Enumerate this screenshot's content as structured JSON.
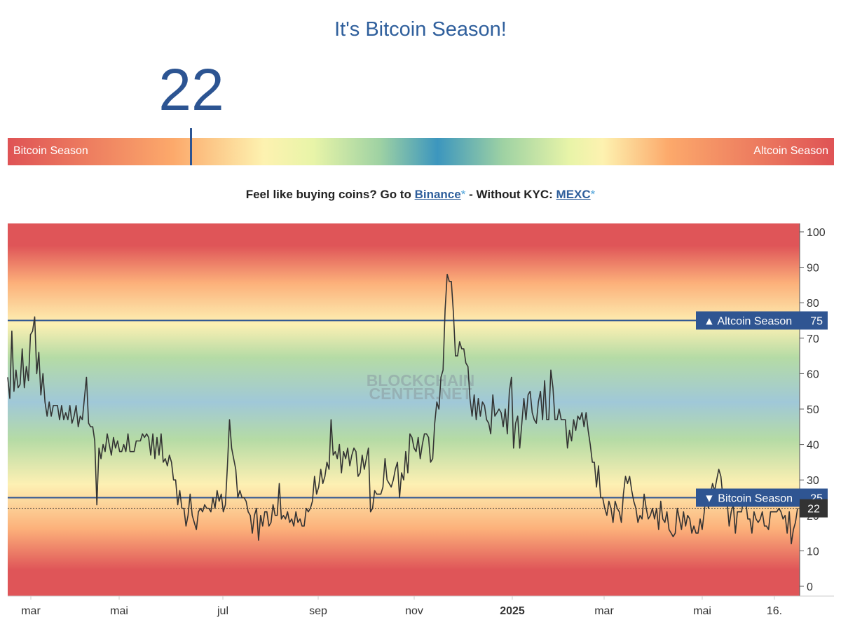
{
  "header": {
    "title": "It's Bitcoin Season!",
    "index_value": "22"
  },
  "gauge": {
    "left_label": "Bitcoin Season",
    "right_label": "Altcoin Season"
  },
  "promo": {
    "prefix": "Feel like buying coins? Go to ",
    "link1": "Binance",
    "star1": "*",
    "middle": " - Without KYC: ",
    "link2": "MEXC",
    "star2": "*"
  },
  "watermark": {
    "line1": "BLOCKCHAIN",
    "line2": "CENTER.NET"
  },
  "chart_data": {
    "type": "line",
    "ylim": [
      0,
      100
    ],
    "y_ticks": [
      "0",
      "10",
      "20",
      "30",
      "40",
      "50",
      "60",
      "70",
      "80",
      "90",
      "100"
    ],
    "x_tick_labels": [
      "mar",
      "mai",
      "jul",
      "sep",
      "nov",
      "2025",
      "mar",
      "mai",
      "16."
    ],
    "threshold_lines": [
      {
        "label": "▲ Altcoin Season",
        "value": 75
      },
      {
        "label": "▼ Bitcoin Season",
        "value": 25
      }
    ],
    "current": {
      "label": "22",
      "value": 22
    },
    "series": [
      {
        "values": [
          59,
          53,
          72,
          55,
          61,
          56,
          57,
          67,
          56,
          62,
          58,
          71,
          72,
          76,
          60,
          66,
          54,
          60,
          52,
          48,
          52,
          48,
          51,
          51,
          51,
          47,
          51,
          47,
          49,
          47,
          51,
          46,
          48,
          51,
          45,
          48,
          47,
          53,
          59,
          46,
          45,
          45,
          41,
          23,
          39,
          36,
          40,
          38,
          43,
          40,
          37,
          42,
          39,
          41,
          38,
          38,
          40,
          38,
          43,
          38,
          38,
          38,
          41,
          41,
          41,
          43,
          42,
          43,
          42,
          37,
          43,
          36,
          42,
          37,
          43,
          35,
          36,
          34,
          37,
          35,
          30,
          30,
          23,
          27,
          22,
          22,
          17,
          20,
          26,
          20,
          18,
          16,
          21,
          22,
          21,
          23,
          22,
          22,
          21,
          25,
          22,
          27,
          24,
          26,
          21,
          23,
          34,
          47,
          39,
          36,
          33,
          25,
          27,
          25,
          25,
          24,
          21,
          20,
          15,
          20,
          22,
          13,
          20,
          17,
          21,
          21,
          17,
          18,
          23,
          20,
          20,
          29,
          19,
          20,
          19,
          21,
          18,
          19,
          17,
          21,
          18,
          19,
          17,
          17,
          22,
          21,
          22,
          24,
          31,
          26,
          28,
          33,
          29,
          31,
          35,
          33,
          47,
          37,
          38,
          36,
          40,
          32,
          38,
          36,
          39,
          34,
          37,
          39,
          38,
          31,
          32,
          37,
          33,
          36,
          39,
          21,
          22,
          27,
          26,
          26,
          26,
          28,
          36,
          30,
          29,
          28,
          30,
          33,
          35,
          25,
          32,
          30,
          38,
          32,
          43,
          42,
          39,
          38,
          42,
          36,
          40,
          43,
          43,
          42,
          35,
          36,
          46,
          52,
          50,
          59,
          61,
          78,
          88,
          86,
          86,
          77,
          65,
          65,
          69,
          67,
          67,
          63,
          62,
          53,
          48,
          54,
          47,
          53,
          48,
          52,
          51,
          47,
          46,
          43,
          54,
          48,
          49,
          50,
          49,
          45,
          50,
          43,
          55,
          59,
          39,
          46,
          48,
          39,
          46,
          53,
          47,
          54,
          55,
          49,
          47,
          46,
          52,
          55,
          47,
          58,
          47,
          47,
          61,
          56,
          47,
          47,
          50,
          47,
          47,
          47,
          39,
          44,
          41,
          47,
          44,
          48,
          47,
          49,
          45,
          49,
          44,
          40,
          35,
          35,
          28,
          34,
          25,
          25,
          22,
          20,
          24,
          22,
          18,
          24,
          22,
          21,
          18,
          26,
          31,
          29,
          31,
          27,
          24,
          22,
          18,
          20,
          19,
          26,
          22,
          19,
          20,
          22,
          19,
          22,
          16,
          24,
          19,
          18,
          21,
          16,
          15,
          14,
          15,
          22,
          19,
          16,
          21,
          17,
          20,
          19,
          15,
          17,
          15,
          15,
          19,
          16,
          21,
          27,
          22,
          26,
          29,
          27,
          30,
          33,
          31,
          25,
          25,
          24,
          17,
          21,
          23,
          15,
          21,
          21,
          21,
          25,
          24,
          19,
          19,
          15,
          21,
          19,
          18,
          19,
          21,
          17,
          17,
          16,
          21,
          21,
          21,
          21,
          22,
          21,
          19,
          20,
          15,
          21,
          12,
          16,
          18,
          22
        ]
      }
    ]
  }
}
